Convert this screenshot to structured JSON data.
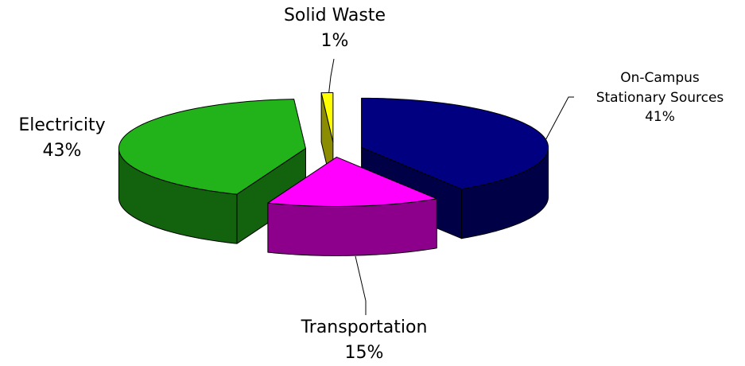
{
  "chart_data": {
    "type": "pie3d",
    "categories": [
      "On-Campus Stationary Sources",
      "Transportation",
      "Electricity",
      "Solid Waste"
    ],
    "values": [
      41,
      15,
      43,
      1
    ],
    "value_labels": [
      "41%",
      "15%",
      "43%",
      "1%"
    ],
    "colors": [
      "#000080",
      "#ff00ff",
      "#22b21a",
      "#ffff00"
    ]
  }
}
